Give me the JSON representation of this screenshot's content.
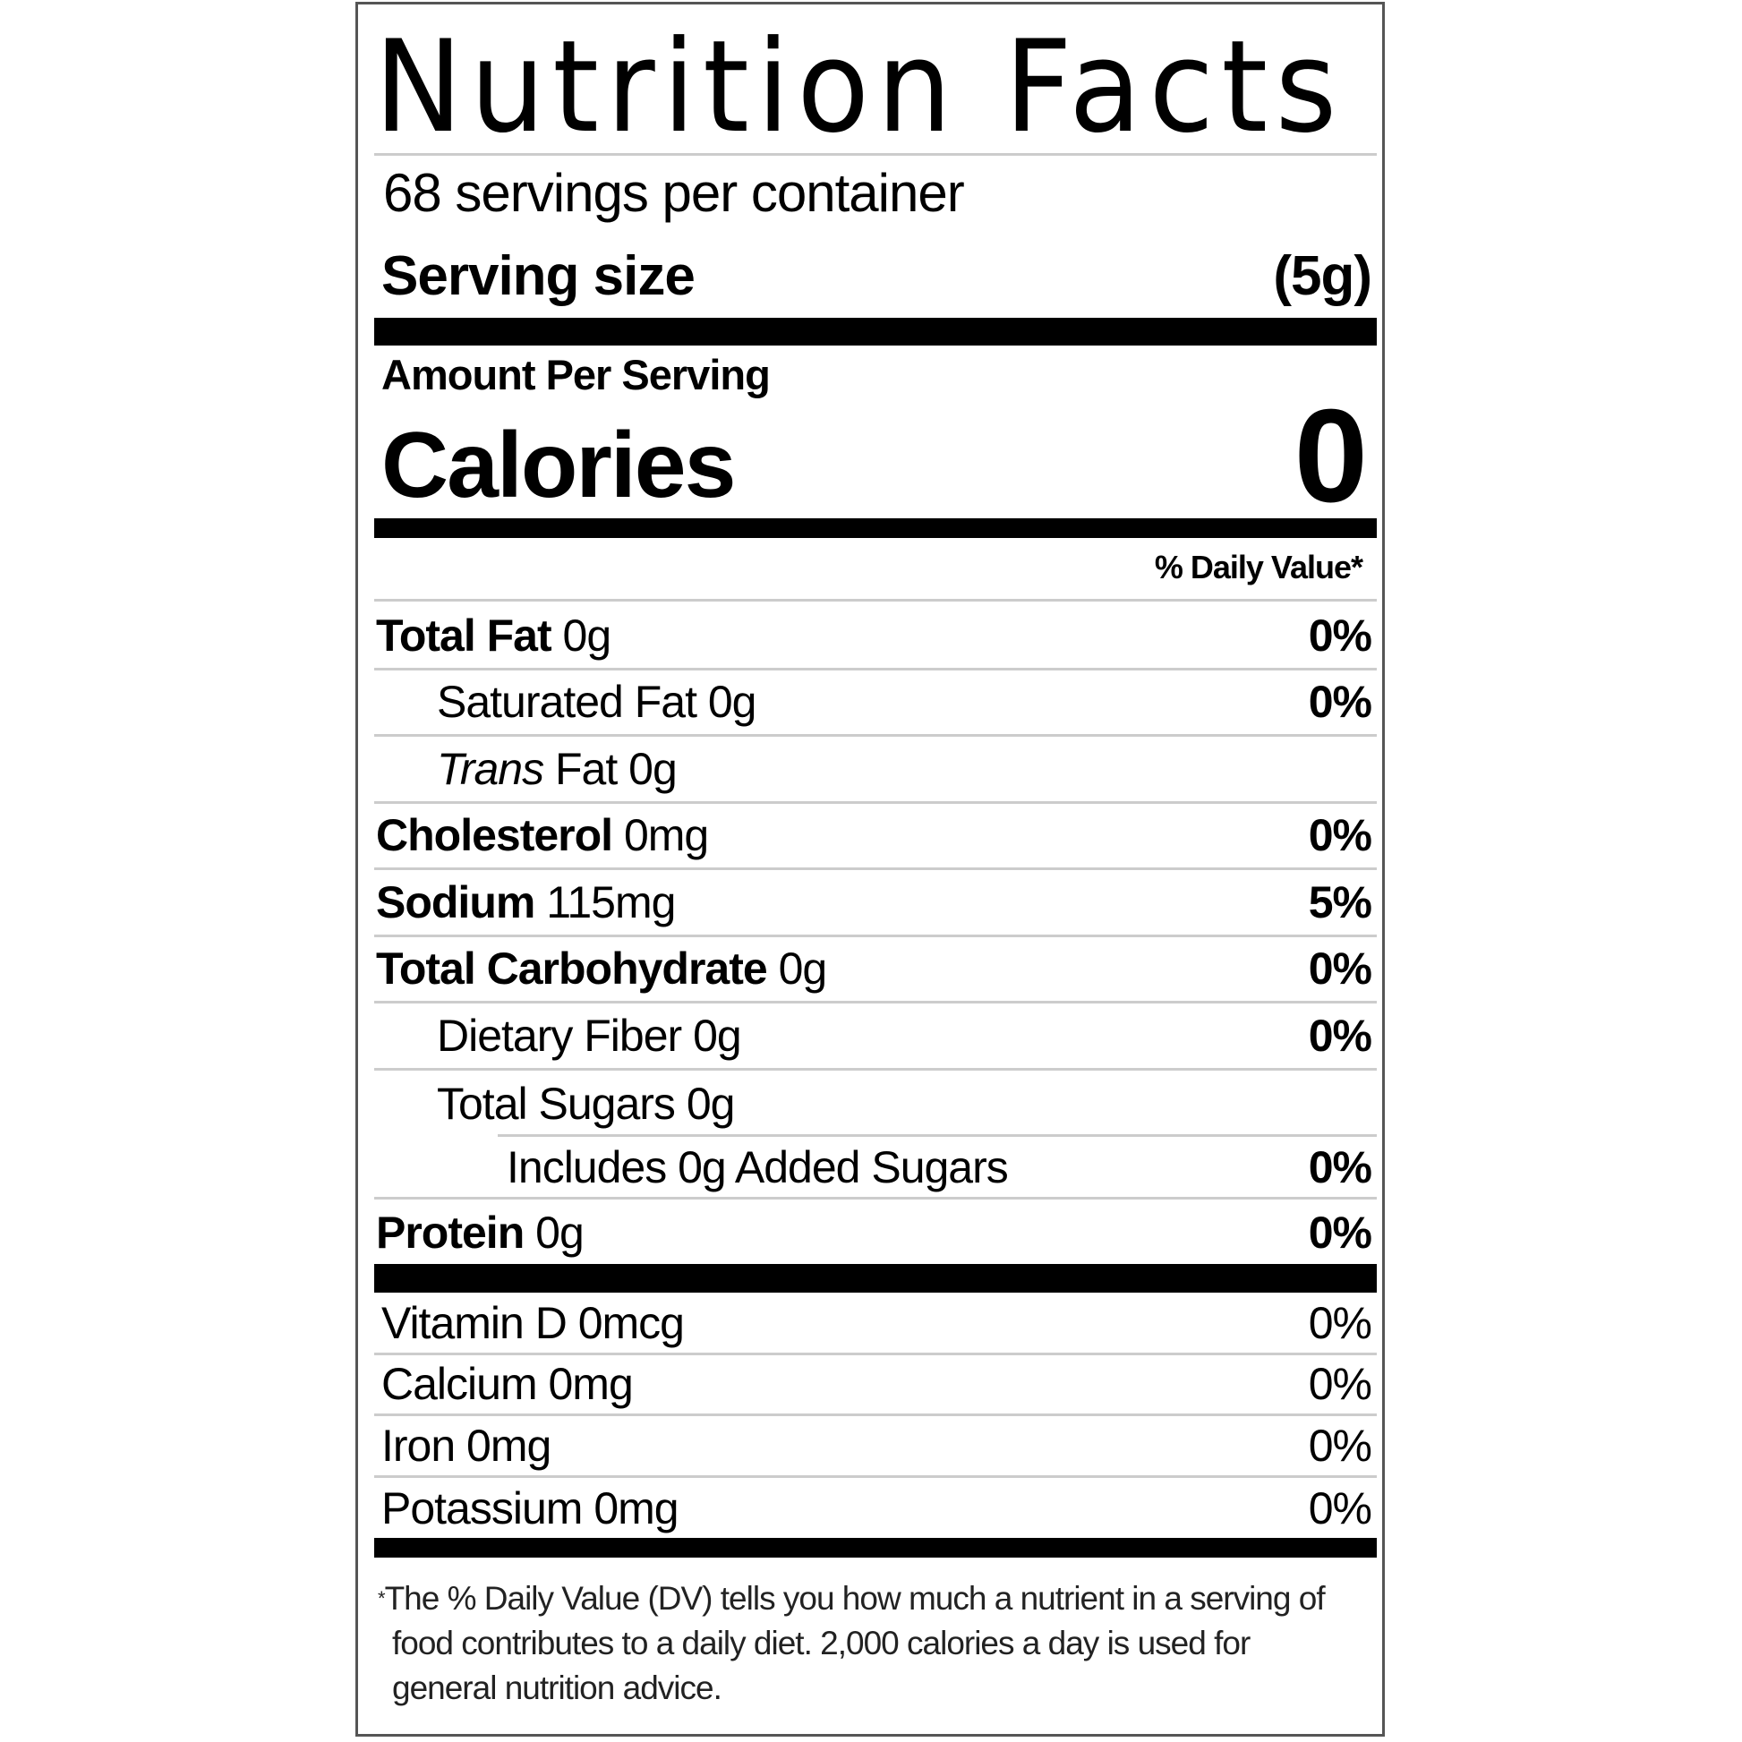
{
  "title": "Nutrition Facts",
  "servings_per_container": "68 servings per container",
  "serving_size": {
    "label": "Serving size",
    "value": "(5g)"
  },
  "amount_per_serving": "Amount Per Serving",
  "calories": {
    "label": "Calories",
    "value": "0"
  },
  "daily_value_header": "% Daily Value*",
  "nutrients": [
    {
      "name": "Total Fat",
      "amount": "0g",
      "dv": "0%"
    },
    {
      "name": "Saturated Fat",
      "amount": "0g",
      "dv": "0%"
    },
    {
      "name_italic": "Trans",
      "name": "Fat",
      "amount": "0g"
    },
    {
      "name": "Cholesterol",
      "amount": "0mg",
      "dv": "0%"
    },
    {
      "name": "Sodium",
      "amount": "115mg",
      "dv": "5%"
    },
    {
      "name": "Total Carbohydrate",
      "amount": "0g",
      "dv": "0%"
    },
    {
      "name": "Dietary Fiber",
      "amount": "0g",
      "dv": "0%"
    },
    {
      "name": "Total Sugars",
      "amount": "0g"
    },
    {
      "text": "Includes 0g Added Sugars",
      "dv": "0%"
    },
    {
      "name": "Protein",
      "amount": "0g",
      "dv": "0%"
    }
  ],
  "vitamins": [
    {
      "text": "Vitamin D 0mcg",
      "dv": "0%"
    },
    {
      "text": "Calcium 0mg",
      "dv": "0%"
    },
    {
      "text": "Iron 0mg",
      "dv": "0%"
    },
    {
      "text": "Potassium 0mg",
      "dv": "0%"
    }
  ],
  "footnote": {
    "star": "*",
    "text": "The % Daily Value (DV) tells you how much a nutrient in a serving of food contributes to a daily diet. 2,000 calories a day is used for general nutrition advice."
  }
}
